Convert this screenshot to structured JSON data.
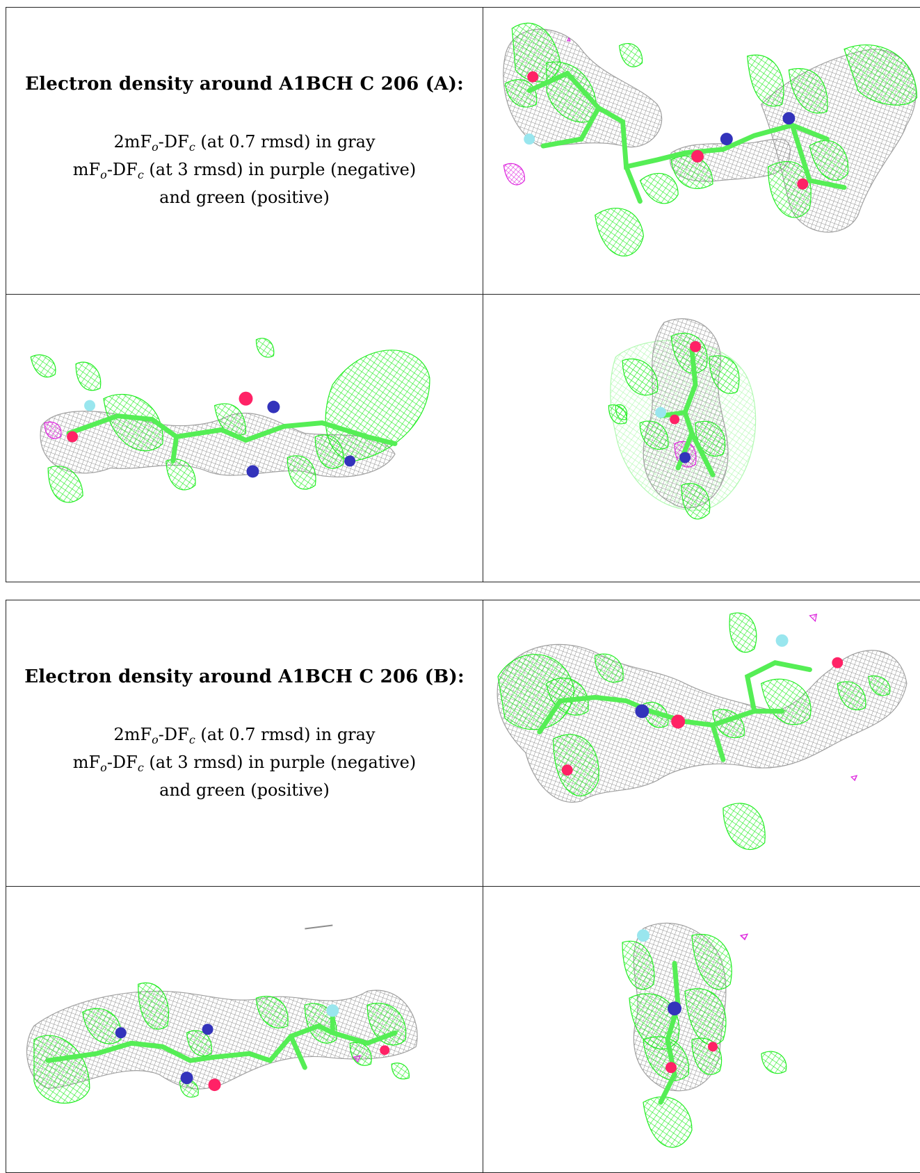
{
  "panel_a": {
    "title": "Electron density around A1BCH C 206 (A):",
    "legend": {
      "line1_pre": "2mF",
      "line1_sub1": "o",
      "line1_mid": "-DF",
      "line1_sub2": "c",
      "line1_post": " (at 0.7 rmsd) in gray",
      "line2_pre": "mF",
      "line2_sub1": "o",
      "line2_mid": "-DF",
      "line2_sub2": "c",
      "line2_post": " (at 3 rmsd) in purple (negative)",
      "line3": "and green (positive)"
    }
  },
  "panel_b": {
    "title": "Electron density around A1BCH C 206 (B):",
    "legend": {
      "line1_pre": "2mF",
      "line1_sub1": "o",
      "line1_mid": "-DF",
      "line1_sub2": "c",
      "line1_post": " (at 0.7 rmsd) in gray",
      "line2_pre": "mF",
      "line2_sub1": "o",
      "line2_mid": "-DF",
      "line2_sub2": "c",
      "line2_post": " (at 3 rmsd) in purple (negative)",
      "line3": "and green (positive)"
    }
  },
  "colors": {
    "map_2fofc": "#9a9a9a",
    "map_positive": "#22ee22",
    "map_negative": "#dd22dd",
    "carbon": "#55ee55",
    "oxygen": "#ff2266",
    "nitrogen": "#3333bb",
    "fluorine": "#99e6ee"
  }
}
